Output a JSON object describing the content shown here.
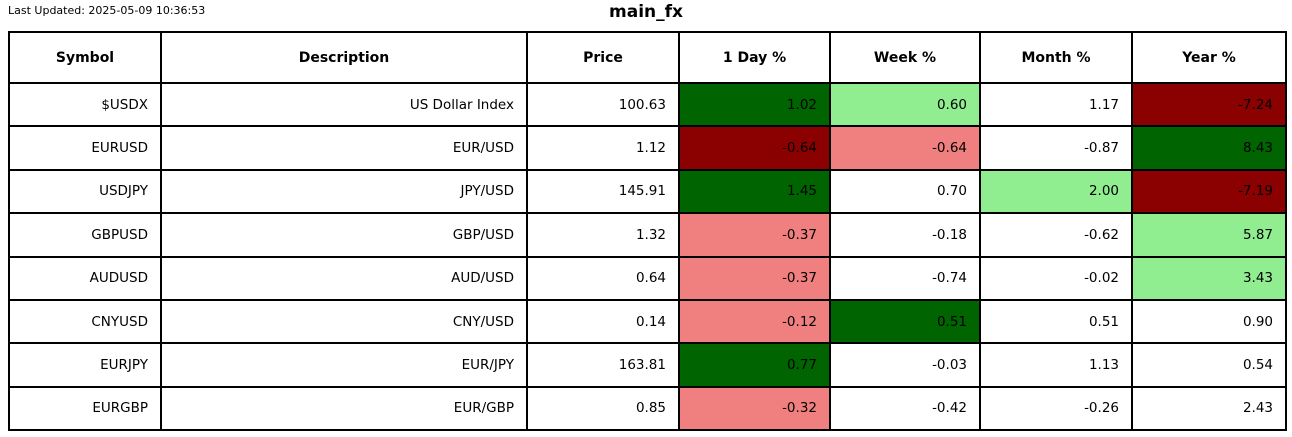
{
  "meta": {
    "last_updated": "Last Updated: 2025-05-09 10:36:53"
  },
  "colors": {
    "strong_up": "#006400",
    "mild_up": "#90EE90",
    "neutral": "#FFFFFF",
    "strong_down": "#8B0000",
    "mild_down": "#F08080"
  },
  "chart_data": {
    "type": "table",
    "title": "main_fx",
    "annotations": [
      "Last Updated: 2025-05-09 10:36:53"
    ],
    "columns": [
      "Symbol",
      "Description",
      "Price",
      "1 Day %",
      "Week %",
      "Month %",
      "Year %"
    ],
    "rows": [
      {
        "symbol": "$USDX",
        "description": "US Dollar Index",
        "price": "100.63",
        "day": {
          "value": "1.02",
          "bg": "strong_up"
        },
        "week": {
          "value": "0.60",
          "bg": "mild_up"
        },
        "month": {
          "value": "1.17",
          "bg": "neutral"
        },
        "year": {
          "value": "-7.24",
          "bg": "strong_down"
        }
      },
      {
        "symbol": "EURUSD",
        "description": "EUR/USD",
        "price": "1.12",
        "day": {
          "value": "-0.64",
          "bg": "strong_down"
        },
        "week": {
          "value": "-0.64",
          "bg": "mild_down"
        },
        "month": {
          "value": "-0.87",
          "bg": "neutral"
        },
        "year": {
          "value": "8.43",
          "bg": "strong_up"
        }
      },
      {
        "symbol": "USDJPY",
        "description": "JPY/USD",
        "price": "145.91",
        "day": {
          "value": "1.45",
          "bg": "strong_up"
        },
        "week": {
          "value": "0.70",
          "bg": "neutral"
        },
        "month": {
          "value": "2.00",
          "bg": "mild_up"
        },
        "year": {
          "value": "-7.19",
          "bg": "strong_down"
        }
      },
      {
        "symbol": "GBPUSD",
        "description": "GBP/USD",
        "price": "1.32",
        "day": {
          "value": "-0.37",
          "bg": "mild_down"
        },
        "week": {
          "value": "-0.18",
          "bg": "neutral"
        },
        "month": {
          "value": "-0.62",
          "bg": "neutral"
        },
        "year": {
          "value": "5.87",
          "bg": "mild_up"
        }
      },
      {
        "symbol": "AUDUSD",
        "description": "AUD/USD",
        "price": "0.64",
        "day": {
          "value": "-0.37",
          "bg": "mild_down"
        },
        "week": {
          "value": "-0.74",
          "bg": "neutral"
        },
        "month": {
          "value": "-0.02",
          "bg": "neutral"
        },
        "year": {
          "value": "3.43",
          "bg": "mild_up"
        }
      },
      {
        "symbol": "CNYUSD",
        "description": "CNY/USD",
        "price": "0.14",
        "day": {
          "value": "-0.12",
          "bg": "mild_down"
        },
        "week": {
          "value": "0.51",
          "bg": "strong_up"
        },
        "month": {
          "value": "0.51",
          "bg": "neutral"
        },
        "year": {
          "value": "0.90",
          "bg": "neutral"
        }
      },
      {
        "symbol": "EURJPY",
        "description": "EUR/JPY",
        "price": "163.81",
        "day": {
          "value": "0.77",
          "bg": "strong_up"
        },
        "week": {
          "value": "-0.03",
          "bg": "neutral"
        },
        "month": {
          "value": "1.13",
          "bg": "neutral"
        },
        "year": {
          "value": "0.54",
          "bg": "neutral"
        }
      },
      {
        "symbol": "EURGBP",
        "description": "EUR/GBP",
        "price": "0.85",
        "day": {
          "value": "-0.32",
          "bg": "mild_down"
        },
        "week": {
          "value": "-0.42",
          "bg": "neutral"
        },
        "month": {
          "value": "-0.26",
          "bg": "neutral"
        },
        "year": {
          "value": "2.43",
          "bg": "neutral"
        }
      }
    ]
  }
}
